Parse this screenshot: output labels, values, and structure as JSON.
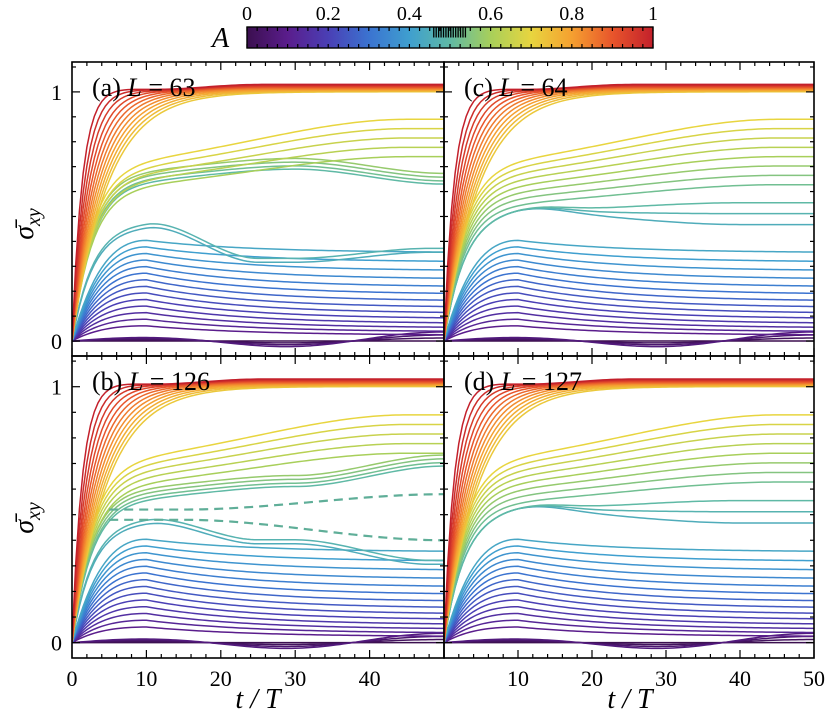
{
  "chart_data": {
    "type": "line",
    "figure": {
      "colorbar": {
        "label": "A",
        "ticks": [
          "0",
          "0.2",
          "0.4",
          "0.6",
          "0.8",
          "1"
        ],
        "range": [
          0,
          1
        ],
        "colormap": [
          "#3b0f4f",
          "#5a1d8c",
          "#4a3fb5",
          "#3b73d0",
          "#3f9fcf",
          "#5fb9a5",
          "#a8cf5a",
          "#e8d53f",
          "#f5a030",
          "#e8552b",
          "#c3202b"
        ]
      },
      "xlabel": "t / T",
      "ylabel": "σ̄xy",
      "xlim": [
        0,
        50
      ],
      "ylim": [
        -0.06,
        1.12
      ],
      "xticks": [
        "0",
        "10",
        "20",
        "30",
        "40",
        "50"
      ],
      "yticks": [
        "0",
        "1"
      ],
      "num_curves_per_panel": 41
    },
    "panels": [
      {
        "label": "(a)",
        "L": "63",
        "title": "(a) L = 63",
        "t_end": 50,
        "bands": {
          "bifurcation": true,
          "high_branch": [
            0.66,
            0.7,
            0.64
          ],
          "low_branch": [
            0.46,
            0.31,
            0.35
          ],
          "dashed": false
        },
        "description": "Curves colored by amplitude A from 0 to 1"
      },
      {
        "label": "(b)",
        "L": "126",
        "title": "(b) L = 126",
        "t_end": 50,
        "bands": {
          "bifurcation": true,
          "high_branch": [
            0.58,
            0.62,
            0.7
          ],
          "low_branch": [
            0.47,
            0.38,
            0.3
          ],
          "dashed": true
        },
        "description": "Curves colored by amplitude A from 0 to 1"
      },
      {
        "label": "(c)",
        "L": "64",
        "title": "(c) L = 64",
        "t_end": 50,
        "bands": {
          "bifurcation": false,
          "center": [
            0.52,
            0.52,
            0.52
          ],
          "dashed": false
        },
        "description": "Curves colored by amplitude A from 0 to 1"
      },
      {
        "label": "(d)",
        "L": "127",
        "title": "(d) L = 127",
        "t_end": 50,
        "bands": {
          "bifurcation": false,
          "center": [
            0.52,
            0.52,
            0.52
          ],
          "dashed": false
        },
        "description": "Curves colored by amplitude A from 0 to 1"
      }
    ]
  }
}
